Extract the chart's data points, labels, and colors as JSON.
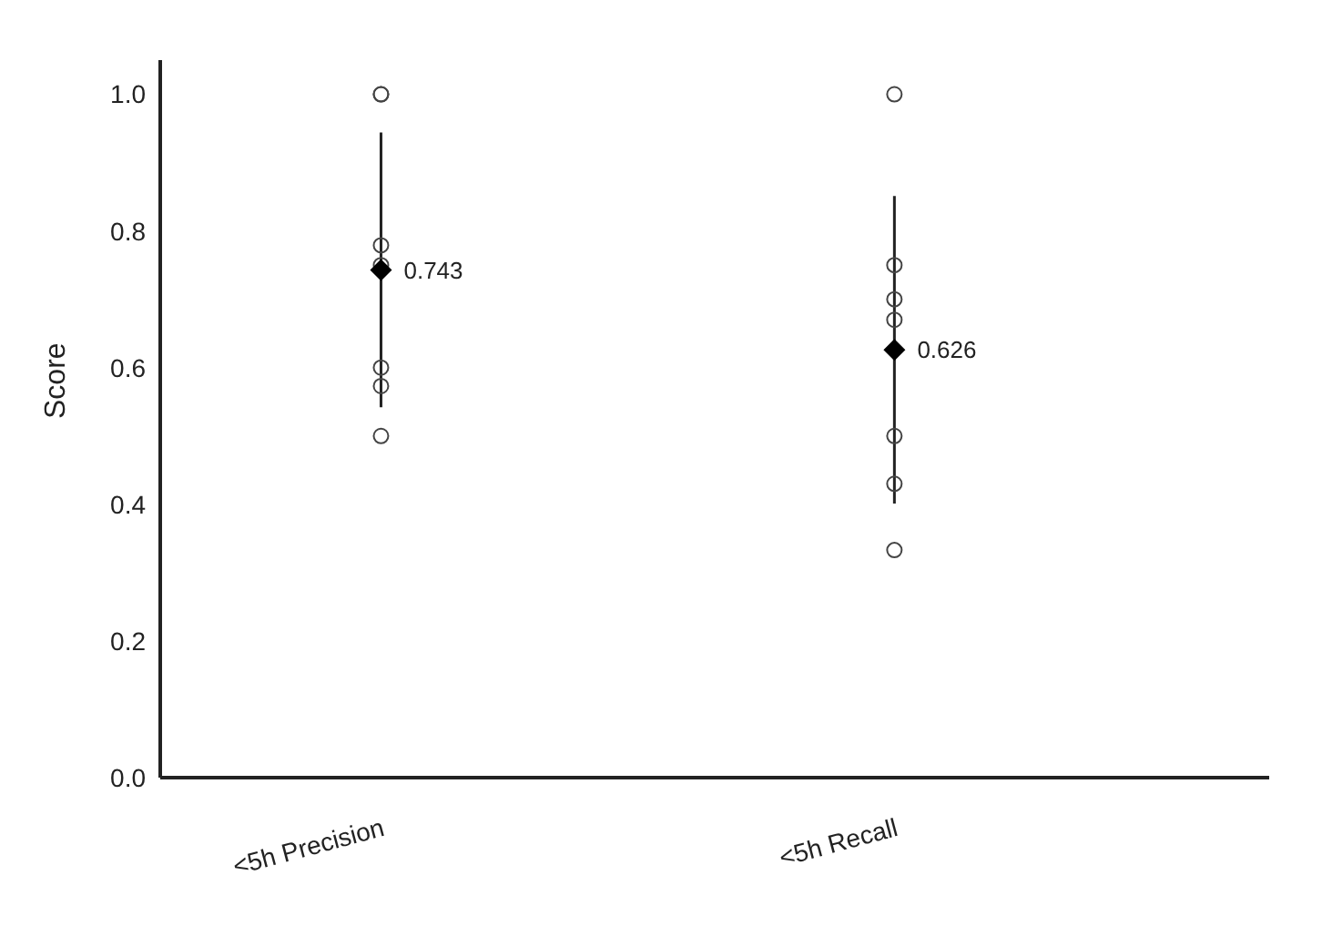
{
  "chart_data": {
    "type": "scatter",
    "categories": [
      "<5h Precision",
      "<5h Recall"
    ],
    "ylabel": "Score",
    "ylim": [
      0,
      1.05
    ],
    "yticks": [
      {
        "value": 0,
        "label": "0.0"
      },
      0.2,
      0.4,
      0.6,
      0.8,
      {
        "value": 1,
        "label": "1.0"
      }
    ],
    "grid": false,
    "legend": false,
    "series": [
      {
        "color": "#444444",
        "marker": "circle",
        "x": [
          "<5h Precision",
          "<5h Precision",
          "<5h Precision",
          "<5h Precision",
          "<5h Precision",
          "<5h Precision",
          "<5h Precision"
        ],
        "values": [
          1.0,
          1.0,
          0.779,
          0.75,
          0.6,
          0.573,
          0.5
        ]
      },
      {
        "color": "#444444",
        "marker": "circle",
        "x": [
          "<5h Recall",
          "<5h Recall",
          "<5h Recall",
          "<5h Recall",
          "<5h Recall",
          "<5h Recall",
          "<5h Recall"
        ],
        "values": [
          1.0,
          0.75,
          0.7,
          0.67,
          0.5,
          0.43,
          0.333
        ]
      },
      {
        "color": "#000000",
        "marker": "diamond",
        "x": [
          "<5h Precision",
          "<5h Recall"
        ],
        "values": [
          0.743,
          0.626
        ],
        "errors": [
          0.201,
          0.225
        ],
        "value_labels": [
          "0.743",
          "0.626"
        ]
      }
    ]
  }
}
